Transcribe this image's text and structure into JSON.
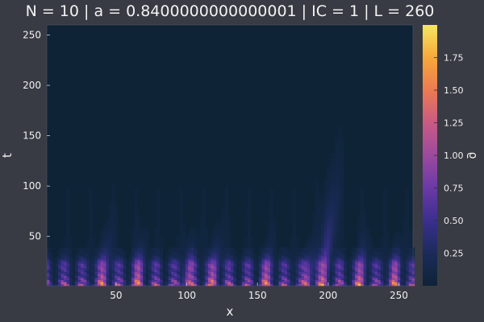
{
  "chart_data": {
    "type": "heatmap",
    "title": "N = 10 | a = 0.8400000000000001 | IC = 1 | L = 260",
    "xlabel": "x",
    "ylabel": "t",
    "colorbar_label": "ϱ",
    "xlim": [
      1,
      260
    ],
    "ylim": [
      1,
      260
    ],
    "x_ticks": [
      50,
      100,
      150,
      200,
      250
    ],
    "y_ticks": [
      50,
      100,
      150,
      200,
      250
    ],
    "colorbar_range": [
      0,
      2
    ],
    "colorbar_ticks": [
      0.25,
      0.5,
      0.75,
      1.0,
      1.25,
      1.5,
      1.75
    ],
    "colorbar_tick_labels": [
      "0.25",
      "0.50",
      "0.75",
      "1.00",
      "1.25",
      "1.50",
      "1.75"
    ],
    "colormap": [
      "#0e2436",
      "#1b2b5a",
      "#3b2f8e",
      "#6a3aa6",
      "#9c4a9e",
      "#c85a84",
      "#ec7a52",
      "#f7a83a",
      "#f5e663"
    ],
    "hotspot_x": [
      40,
      65,
      100,
      118,
      155,
      185,
      196,
      222,
      246
    ],
    "hotspot_t_extent": [
      40,
      35,
      35,
      38,
      30,
      32,
      80,
      35,
      32
    ],
    "tall_plume": {
      "x": 196,
      "t_max": 80
    }
  },
  "colors": {
    "background": "#383b43",
    "text": "#f2f2f2",
    "low": "#0e2436"
  }
}
